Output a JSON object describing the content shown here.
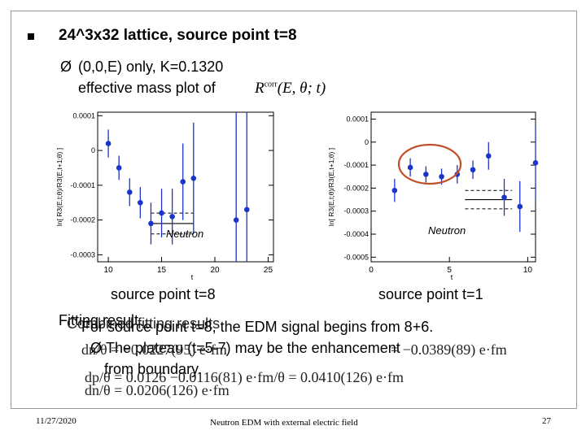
{
  "slide": {
    "title": "24^3x32 lattice, source point t=8",
    "bullet_arrow": "Ø",
    "sub1": "(0,0,E) only, K=0.1320",
    "sub2": "effective mass plot of",
    "formula_main": "R",
    "formula_sup": "corr",
    "formula_args": "(E, θ; t)",
    "caption_left": "source point  t=8",
    "caption_right": "source point  t=1",
    "overlap_a": "Fitting result",
    "overlap_b": "Combined fitting results",
    "overlap_c": "For source point t=8, the EDM signal begins from 8+6.",
    "overlap_d_arrow": "Ø",
    "overlap_d": "The plateau (t=5-7) may be the enhancement",
    "overlap_e": "from boundary.",
    "eq1": "dn/θ = −0.0227(95) e·fm",
    "eq1_right": "= −0.0389(89) e·fm",
    "eq2": "dp/θ = 0.0126  −0.0116(81) e·fm/θ = 0.0410(126) e·fm",
    "eq3": "dn/θ = 0.0206(126) e·fm",
    "footer_date": "11/27/2020",
    "footer_title": "Neutron EDM with external electric field",
    "footer_page": "27"
  },
  "colors": {
    "point": "#1a35c8",
    "line": "#1a35c8",
    "circle": "#c05028"
  },
  "chart_data": [
    {
      "type": "scatter",
      "title": "",
      "label": "Neutron",
      "xlabel": "t",
      "ylabel": "ln[ R3(E,t;θ)/R3(E,t+1;θ) ]",
      "xlim": [
        9,
        25.5
      ],
      "ylim": [
        -0.00032,
        0.00011
      ],
      "xticks": [
        10,
        15,
        20,
        25
      ],
      "xtick_labels": [
        "10",
        "15",
        "20",
        "25"
      ],
      "yticks": [
        0.0001,
        0,
        -0.0001,
        -0.0002,
        -0.0003
      ],
      "ytick_labels": [
        "0.0001",
        "0",
        "-0.0001",
        "-0.0002",
        "-0.0003"
      ],
      "points": [
        {
          "x": 10,
          "y": 2e-05,
          "err": 4e-05
        },
        {
          "x": 11,
          "y": -5e-05,
          "err": 3.5e-05
        },
        {
          "x": 12,
          "y": -0.00012,
          "err": 4e-05
        },
        {
          "x": 13,
          "y": -0.00015,
          "err": 4.5e-05
        },
        {
          "x": 14,
          "y": -0.00021,
          "err": 6e-05
        },
        {
          "x": 15,
          "y": -0.00018,
          "err": 7e-05
        },
        {
          "x": 16,
          "y": -0.00019,
          "err": 8e-05
        },
        {
          "x": 17,
          "y": -9e-05,
          "err": 0.00011
        },
        {
          "x": 18,
          "y": -8e-05,
          "err": 0.00016
        },
        {
          "x": 22,
          "y": -0.0002,
          "err": 0.0005
        },
        {
          "x": 23,
          "y": -0.00017,
          "err": 0.0005
        }
      ],
      "fit": {
        "x_start": 14,
        "x_end": 18,
        "value": -0.00021,
        "band": [
          -0.00018,
          -0.00024
        ]
      }
    },
    {
      "type": "scatter",
      "title": "",
      "label": "Neutron",
      "xlabel": "t",
      "ylabel": "ln[ R3(E,t;θ)/R3(E,t+1;θ) ]",
      "xlim": [
        0,
        10.5
      ],
      "ylim": [
        -0.00052,
        0.00013
      ],
      "xticks": [
        0,
        5,
        10
      ],
      "xtick_labels": [
        "0",
        "5",
        "10"
      ],
      "yticks": [
        0.0001,
        0,
        -0.0001,
        -0.0002,
        -0.0003,
        -0.0004,
        -0.0005
      ],
      "ytick_labels": [
        "0.0001",
        "0",
        "-0.0001",
        "-0.0002",
        "-0.0003",
        "-0.0004",
        "-0.0005"
      ],
      "points": [
        {
          "x": 1.5,
          "y": -0.00021,
          "err": 5e-05
        },
        {
          "x": 2.5,
          "y": -0.00011,
          "err": 4e-05
        },
        {
          "x": 3.5,
          "y": -0.00014,
          "err": 3.5e-05
        },
        {
          "x": 4.5,
          "y": -0.00015,
          "err": 3.5e-05
        },
        {
          "x": 5.5,
          "y": -0.00014,
          "err": 4e-05
        },
        {
          "x": 6.5,
          "y": -0.00012,
          "err": 4e-05
        },
        {
          "x": 7.5,
          "y": -6e-05,
          "err": 6e-05
        },
        {
          "x": 8.5,
          "y": -0.00024,
          "err": 8e-05
        },
        {
          "x": 9.5,
          "y": -0.00028,
          "err": 0.00011
        },
        {
          "x": 10.5,
          "y": -9e-05,
          "err": 0.00016
        }
      ],
      "fit": {
        "x_start": 6,
        "x_end": 9,
        "value": -0.00025,
        "band": [
          -0.00021,
          -0.00029
        ]
      }
    }
  ]
}
